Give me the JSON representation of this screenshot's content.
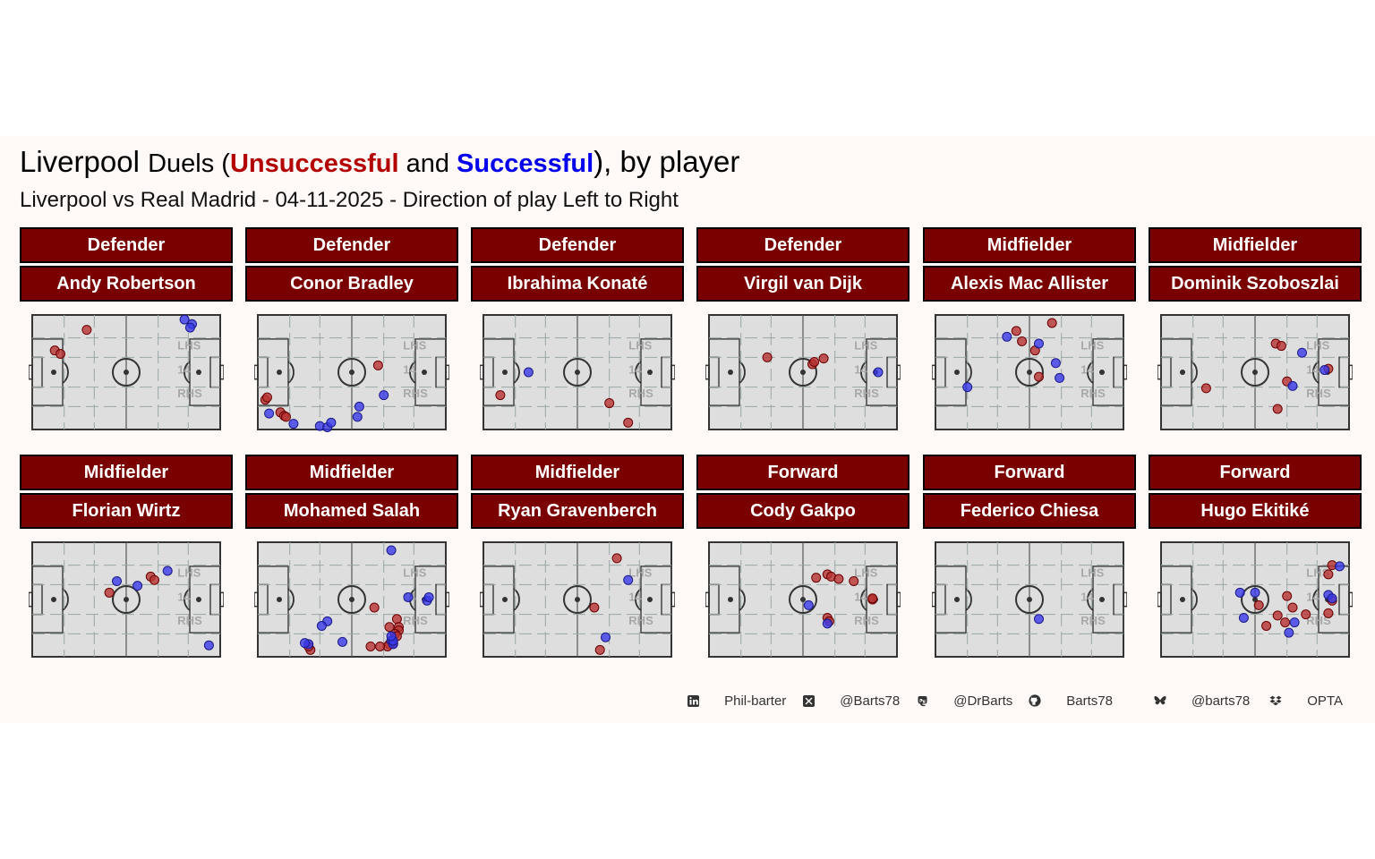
{
  "title": {
    "team": "Liverpool",
    "duels": "Duels (",
    "unsuccessful": "Unsuccessful",
    "and": " and ",
    "successful": "Successful",
    "close": "), by player"
  },
  "subtitle": "Liverpool vs Real Madrid - 04-11-2025 - Direction of play Left to Right",
  "colors": {
    "unsuccessful": "#b83232",
    "successful": "#3a3ae8",
    "strip_bg": "#7a0000",
    "pitch_bg": "#dedede",
    "panel_bg": "#fff9f8"
  },
  "pitch_labels": {
    "lhs": "LHS",
    "mid": "14",
    "rhs": "RHS"
  },
  "caption": [
    {
      "icon": "linkedin-icon",
      "text": "Phil-barter"
    },
    {
      "icon": "x-twitter-icon",
      "text": "@Barts78"
    },
    {
      "icon": "mastodon-icon",
      "text": "@DrBarts"
    },
    {
      "icon": "github-icon",
      "text": "Barts78"
    },
    {
      "icon": "bluesky-icon",
      "text": "@barts78"
    },
    {
      "icon": "dropbox-icon",
      "text": "OPTA"
    }
  ],
  "chart_data": {
    "type": "scatter",
    "x_range": [
      0,
      100
    ],
    "y_range": [
      0,
      100
    ],
    "series_names": [
      "Unsuccessful",
      "Successful"
    ],
    "facets": [
      {
        "position": "Defender",
        "player": "Andy Robertson",
        "unsuccessful": [
          [
            12,
            69
          ],
          [
            15,
            66
          ],
          [
            29,
            87
          ]
        ],
        "successful": [
          [
            81,
            96
          ],
          [
            85,
            92
          ],
          [
            84,
            89
          ]
        ]
      },
      {
        "position": "Defender",
        "player": "Conor Bradley",
        "unsuccessful": [
          [
            4,
            26
          ],
          [
            5,
            28
          ],
          [
            12,
            15
          ],
          [
            14,
            12
          ],
          [
            15,
            11
          ],
          [
            64,
            56
          ]
        ],
        "successful": [
          [
            6,
            14
          ],
          [
            19,
            5
          ],
          [
            33,
            3
          ],
          [
            37,
            2
          ],
          [
            39,
            6
          ],
          [
            53,
            11
          ],
          [
            54,
            20
          ],
          [
            67,
            30
          ]
        ]
      },
      {
        "position": "Defender",
        "player": "Ibrahima Konaté",
        "unsuccessful": [
          [
            9,
            30
          ],
          [
            67,
            23
          ],
          [
            77,
            6
          ]
        ],
        "successful": [
          [
            24,
            50
          ]
        ]
      },
      {
        "position": "Defender",
        "player": "Virgil van Dijk",
        "unsuccessful": [
          [
            31,
            63
          ],
          [
            55,
            57
          ],
          [
            56,
            59
          ],
          [
            61,
            62
          ]
        ],
        "successful": [
          [
            90,
            50
          ]
        ]
      },
      {
        "position": "Midfielder",
        "player": "Alexis Mac Allister",
        "unsuccessful": [
          [
            43,
            86
          ],
          [
            46,
            77
          ],
          [
            62,
            93
          ],
          [
            53,
            69
          ],
          [
            55,
            46
          ]
        ],
        "successful": [
          [
            38,
            81
          ],
          [
            55,
            75
          ],
          [
            64,
            58
          ],
          [
            66,
            45
          ],
          [
            17,
            37
          ]
        ]
      },
      {
        "position": "Midfielder",
        "player": "Dominik Szoboszlai",
        "unsuccessful": [
          [
            24,
            36
          ],
          [
            61,
            75
          ],
          [
            64,
            73
          ],
          [
            67,
            42
          ],
          [
            89,
            53
          ],
          [
            62,
            18
          ]
        ],
        "successful": [
          [
            75,
            67
          ],
          [
            70,
            38
          ],
          [
            87,
            52
          ]
        ]
      },
      {
        "position": "Midfielder",
        "player": "Florian Wirtz",
        "unsuccessful": [
          [
            41,
            56
          ],
          [
            63,
            70
          ],
          [
            65,
            67
          ]
        ],
        "successful": [
          [
            45,
            66
          ],
          [
            56,
            62
          ],
          [
            72,
            75
          ],
          [
            94,
            10
          ]
        ]
      },
      {
        "position": "Midfielder",
        "player": "Mohamed Salah",
        "unsuccessful": [
          [
            62,
            43
          ],
          [
            74,
            33
          ],
          [
            75,
            26
          ],
          [
            75,
            23
          ],
          [
            73,
            20
          ],
          [
            72,
            12
          ],
          [
            70,
            11
          ],
          [
            69,
            9
          ],
          [
            65,
            9
          ],
          [
            70,
            26
          ],
          [
            74,
            18
          ],
          [
            60,
            9
          ],
          [
            28,
            6
          ],
          [
            27,
            9
          ]
        ],
        "successful": [
          [
            71,
            93
          ],
          [
            37,
            31
          ],
          [
            34,
            27
          ],
          [
            27,
            11
          ],
          [
            25,
            12
          ],
          [
            45,
            13
          ],
          [
            90,
            49
          ],
          [
            91,
            52
          ],
          [
            80,
            52
          ],
          [
            71,
            14
          ],
          [
            72,
            11
          ],
          [
            72,
            14
          ],
          [
            71,
            18
          ]
        ]
      },
      {
        "position": "Midfielder",
        "player": "Ryan Gravenberch",
        "unsuccessful": [
          [
            71,
            86
          ],
          [
            59,
            43
          ],
          [
            62,
            6
          ]
        ],
        "successful": [
          [
            77,
            67
          ],
          [
            65,
            17
          ]
        ]
      },
      {
        "position": "Forward",
        "player": "Cody Gakpo",
        "unsuccessful": [
          [
            57,
            69
          ],
          [
            63,
            72
          ],
          [
            65,
            70
          ],
          [
            69,
            68
          ],
          [
            77,
            66
          ],
          [
            87,
            50
          ],
          [
            87,
            51
          ],
          [
            63,
            34
          ],
          [
            64,
            31
          ]
        ],
        "successful": [
          [
            53,
            45
          ],
          [
            63,
            29
          ]
        ]
      },
      {
        "position": "Forward",
        "player": "Federico Chiesa",
        "unsuccessful": [],
        "successful": [
          [
            55,
            33
          ]
        ]
      },
      {
        "position": "Forward",
        "player": "Hugo Ekitiké",
        "unsuccessful": [
          [
            91,
            80
          ],
          [
            89,
            72
          ],
          [
            91,
            49
          ],
          [
            67,
            53
          ],
          [
            52,
            45
          ],
          [
            62,
            36
          ],
          [
            56,
            27
          ],
          [
            66,
            30
          ],
          [
            70,
            43
          ],
          [
            77,
            37
          ],
          [
            89,
            38
          ]
        ],
        "successful": [
          [
            42,
            56
          ],
          [
            50,
            56
          ],
          [
            44,
            34
          ],
          [
            89,
            54
          ],
          [
            71,
            30
          ],
          [
            68,
            21
          ],
          [
            91,
            51
          ],
          [
            95,
            79
          ]
        ]
      }
    ]
  }
}
